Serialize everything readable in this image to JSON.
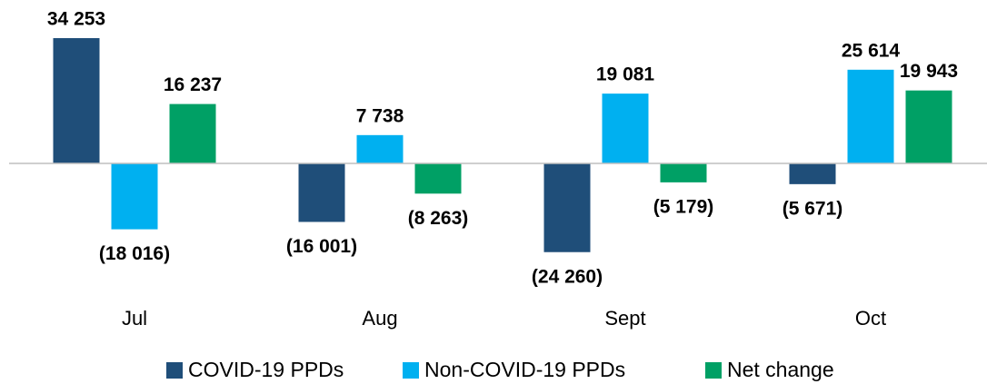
{
  "chart_data": {
    "type": "bar",
    "categories": [
      "Jul",
      "Aug",
      "Sept",
      "Oct"
    ],
    "series": [
      {
        "name": "COVID-19 PPDs",
        "color": "#1f4e79",
        "values": [
          34253,
          -16001,
          -24260,
          -5671
        ],
        "value_labels": [
          "34 253",
          "(16 001)",
          "(24 260)",
          "(5 671)"
        ]
      },
      {
        "name": "Non-COVID-19 PPDs",
        "color": "#00b0f0",
        "values": [
          -18016,
          7738,
          19081,
          25614
        ],
        "value_labels": [
          "(18 016)",
          "7 738",
          "19 081",
          "25 614"
        ]
      },
      {
        "name": "Net change",
        "color": "#00a065",
        "values": [
          16237,
          -8263,
          -5179,
          19943
        ],
        "value_labels": [
          "16 237",
          "(8 263)",
          "(5 179)",
          "19 943"
        ]
      }
    ],
    "legend": "bottom"
  }
}
